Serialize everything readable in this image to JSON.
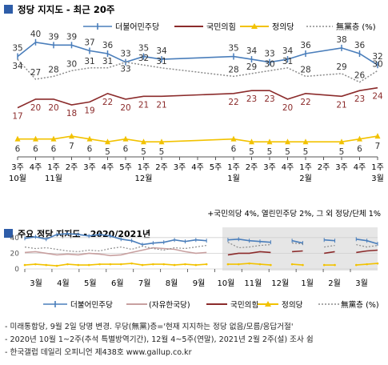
{
  "colors": {
    "accent_square": "#2e5da8",
    "minjoo": "#4a7ebb",
    "pph": "#8b2b2b",
    "justice": "#f2c200",
    "undecided": "#8c8c8c",
    "liberty": "#c8a0a0"
  },
  "top": {
    "title": "정당 지지도 - 최근 20주",
    "footnote": "+국민의당 4%, 열린민주당 2%, 그 외 정당/단체 1%"
  },
  "bottom": {
    "title": "주요 정당 지지도 - 2020/2021년",
    "legend": [
      "더불어민주당",
      "(자유한국당)",
      "국민의힘",
      "정의당",
      "無黨층 (%)"
    ]
  },
  "notes": [
    "- 미래통합당, 9월 2일 당명 변경. 무당(無黨)층='현재 지지하는 정당 없음/모름/응답거절'",
    "- 2020년 10월 1~2주(추석 특별방역기간), 12월 4~5주(연말), 2021년 2월 2주(설) 조사 쉼",
    "- 한국갤럽 데일리 오피니언 제438호 www.gallup.co.kr"
  ],
  "chart_data": [
    {
      "type": "line",
      "title": "정당 지지도 - 최근 20주",
      "x": [
        "3주",
        "4주",
        "1주",
        "2주",
        "3주",
        "4주",
        "5주",
        "1주",
        "2주",
        "3주",
        "4주",
        "5주",
        "1주",
        "2주",
        "3주",
        "4주",
        "1주",
        "2주",
        "3주",
        "4주",
        "1주"
      ],
      "month_labels": [
        {
          "at": 0,
          "label": "10월"
        },
        {
          "at": 2,
          "label": "11월"
        },
        {
          "at": 7,
          "label": "12월"
        },
        {
          "at": 12,
          "label": "1월"
        },
        {
          "at": 16,
          "label": "2월"
        },
        {
          "at": 20,
          "label": "3월"
        }
      ],
      "ylim": [
        0,
        45
      ],
      "series": [
        {
          "name": "더불어민주당",
          "color": "#4a7ebb",
          "marker": "plus",
          "values": [
            35,
            40,
            39,
            39,
            37,
            36,
            33,
            35,
            34,
            null,
            null,
            null,
            35,
            34,
            33,
            34,
            36,
            null,
            38,
            36,
            32
          ]
        },
        {
          "name": "국민의힘",
          "color": "#8b2b2b",
          "marker": "none",
          "values": [
            17,
            20,
            20,
            18,
            19,
            22,
            20,
            21,
            21,
            null,
            null,
            null,
            22,
            23,
            23,
            20,
            22,
            null,
            21,
            23,
            24
          ]
        },
        {
          "name": "정의당",
          "color": "#f2c200",
          "marker": "triangle",
          "values": [
            6,
            6,
            6,
            7,
            6,
            5,
            6,
            5,
            5,
            null,
            null,
            null,
            6,
            5,
            5,
            5,
            5,
            null,
            5,
            6,
            7
          ]
        },
        {
          "name": "無黨층 (%)",
          "color": "#8c8c8c",
          "marker": "none",
          "dashed": true,
          "values": [
            34,
            27,
            28,
            30,
            31,
            31,
            33,
            32,
            31,
            null,
            null,
            null,
            28,
            29,
            30,
            31,
            28,
            null,
            29,
            26,
            30
          ]
        }
      ]
    },
    {
      "type": "line",
      "title": "주요 정당 지지도 - 2020/2021년",
      "x_ticks": [
        "3월",
        "4월",
        "5월",
        "6월",
        "7월",
        "8월",
        "9월",
        "10월",
        "11월",
        "12월",
        "1월",
        "2월",
        "3월"
      ],
      "y_ticks": [
        0,
        20,
        40
      ],
      "ylim": [
        0,
        50
      ],
      "series": [
        {
          "name": "더불어민주당",
          "color": "#4a7ebb",
          "values": [
            39,
            41,
            38,
            44,
            45,
            44,
            42,
            44,
            42,
            38,
            36,
            31,
            33,
            34,
            37,
            35,
            37,
            36,
            null,
            37,
            38,
            36,
            35,
            34,
            null,
            36,
            33,
            null,
            37,
            36,
            null,
            38,
            36,
            32
          ]
        },
        {
          "name": "(자유한국당)",
          "color": "#c8a0a0",
          "values": [
            21,
            22,
            20,
            18,
            19,
            18,
            20,
            19,
            17,
            18,
            21,
            24,
            27,
            26,
            25,
            22,
            20,
            21,
            null,
            null,
            null,
            null,
            null,
            null,
            null,
            null,
            null,
            null,
            null,
            null,
            null,
            null,
            null,
            null
          ]
        },
        {
          "name": "국민의힘",
          "color": "#8b2b2b",
          "values": [
            null,
            null,
            null,
            null,
            null,
            null,
            null,
            null,
            null,
            null,
            null,
            null,
            null,
            null,
            null,
            null,
            null,
            20,
            null,
            18,
            20,
            20,
            22,
            21,
            null,
            22,
            23,
            null,
            20,
            22,
            null,
            21,
            23,
            24
          ]
        },
        {
          "name": "정의당",
          "color": "#f2c200",
          "values": [
            5,
            6,
            5,
            4,
            6,
            5,
            5,
            6,
            6,
            6,
            7,
            5,
            6,
            6,
            5,
            6,
            5,
            6,
            null,
            6,
            6,
            7,
            6,
            5,
            null,
            6,
            5,
            null,
            5,
            5,
            null,
            5,
            6,
            7
          ]
        },
        {
          "name": "無黨층 (%)",
          "color": "#8c8c8c",
          "values": [
            28,
            26,
            27,
            25,
            23,
            22,
            24,
            23,
            26,
            28,
            25,
            29,
            26,
            24,
            27,
            26,
            28,
            30,
            null,
            34,
            27,
            28,
            30,
            31,
            null,
            33,
            32,
            null,
            28,
            30,
            null,
            31,
            28,
            30
          ]
        }
      ]
    }
  ]
}
